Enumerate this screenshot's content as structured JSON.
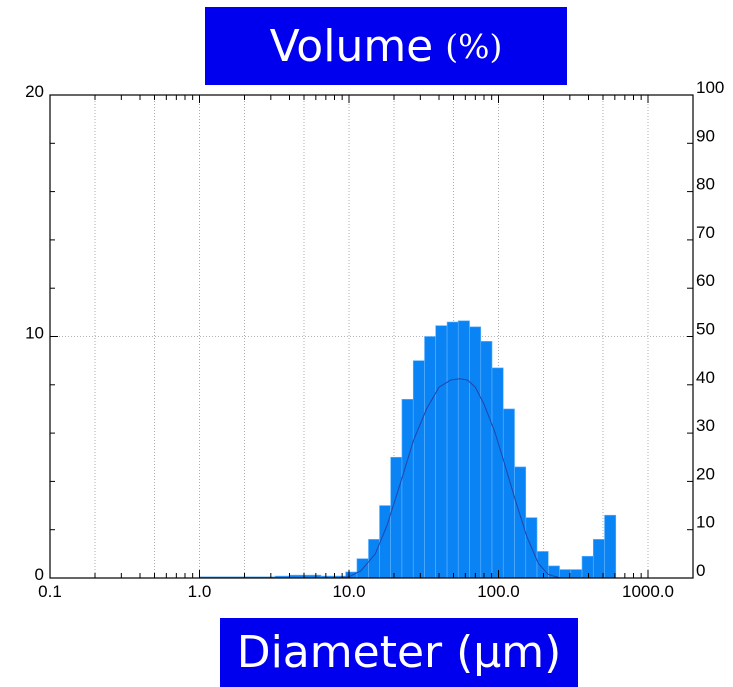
{
  "chart_data": {
    "type": "bar",
    "title": "Volume",
    "title_unit": "(%)",
    "xlabel": "Diameter (µm)",
    "x_scale": "log",
    "xlim": [
      0.1,
      2000
    ],
    "ylim_left": [
      0,
      20
    ],
    "ylim_right": [
      0,
      100
    ],
    "x_tick_labels": [
      "0.1",
      "1.0",
      "10.0",
      "100.0",
      "1000.0"
    ],
    "x_tick_values": [
      0.1,
      1,
      10,
      100,
      1000
    ],
    "y_left_tick_labels": [
      "0",
      "10",
      "20"
    ],
    "y_left_tick_values": [
      0,
      10,
      20
    ],
    "y_right_tick_labels": [
      "0",
      "10",
      "20",
      "30",
      "40",
      "50",
      "60",
      "70",
      "80",
      "90",
      "100"
    ],
    "y_right_tick_values": [
      0,
      10,
      20,
      30,
      40,
      50,
      60,
      70,
      80,
      90,
      100
    ],
    "grid": true,
    "bar_color": "#0a84f5",
    "curve_color": "#2244aa",
    "bins": [
      {
        "x0": 1.0,
        "x1": 3.2,
        "value": 0.05
      },
      {
        "x0": 3.2,
        "x1": 4.0,
        "value": 0.08
      },
      {
        "x0": 4.0,
        "x1": 6.5,
        "value": 0.12
      },
      {
        "x0": 6.5,
        "x1": 9.5,
        "value": 0.08
      },
      {
        "x0": 9.5,
        "x1": 11.3,
        "value": 0.25
      },
      {
        "x0": 11.3,
        "x1": 13.5,
        "value": 0.8
      },
      {
        "x0": 13.5,
        "x1": 16.0,
        "value": 1.6
      },
      {
        "x0": 16.0,
        "x1": 19.0,
        "value": 3.0
      },
      {
        "x0": 19.0,
        "x1": 22.6,
        "value": 5.0
      },
      {
        "x0": 22.6,
        "x1": 26.9,
        "value": 7.4
      },
      {
        "x0": 26.9,
        "x1": 32.0,
        "value": 9.0
      },
      {
        "x0": 32.0,
        "x1": 38.0,
        "value": 10.0
      },
      {
        "x0": 38.0,
        "x1": 45.3,
        "value": 10.45
      },
      {
        "x0": 45.3,
        "x1": 53.8,
        "value": 10.6
      },
      {
        "x0": 53.8,
        "x1": 64.0,
        "value": 10.65
      },
      {
        "x0": 64.0,
        "x1": 76.1,
        "value": 10.4
      },
      {
        "x0": 76.1,
        "x1": 90.5,
        "value": 9.8
      },
      {
        "x0": 90.5,
        "x1": 107.6,
        "value": 8.7
      },
      {
        "x0": 107.6,
        "x1": 128.0,
        "value": 7.0
      },
      {
        "x0": 128.0,
        "x1": 152.2,
        "value": 4.6
      },
      {
        "x0": 152.2,
        "x1": 181.0,
        "value": 2.5
      },
      {
        "x0": 181.0,
        "x1": 215.3,
        "value": 1.1
      },
      {
        "x0": 215.3,
        "x1": 256.0,
        "value": 0.5
      },
      {
        "x0": 256.0,
        "x1": 304.4,
        "value": 0.35
      },
      {
        "x0": 304.4,
        "x1": 362.0,
        "value": 0.35
      },
      {
        "x0": 362.0,
        "x1": 430.5,
        "value": 0.9
      },
      {
        "x0": 430.5,
        "x1": 512.0,
        "value": 1.6
      },
      {
        "x0": 512.0,
        "x1": 608.9,
        "value": 2.6
      }
    ],
    "curve": {
      "x": [
        8,
        10,
        12,
        15,
        18,
        22,
        27,
        33,
        40,
        48,
        55,
        62,
        70,
        80,
        95,
        110,
        130,
        155,
        185,
        215,
        260
      ],
      "y": [
        0,
        0.05,
        0.3,
        1.0,
        2.2,
        3.9,
        5.7,
        7.0,
        7.9,
        8.2,
        8.25,
        8.2,
        7.9,
        7.2,
        6.0,
        4.7,
        3.2,
        1.7,
        0.6,
        0.15,
        0
      ]
    }
  }
}
